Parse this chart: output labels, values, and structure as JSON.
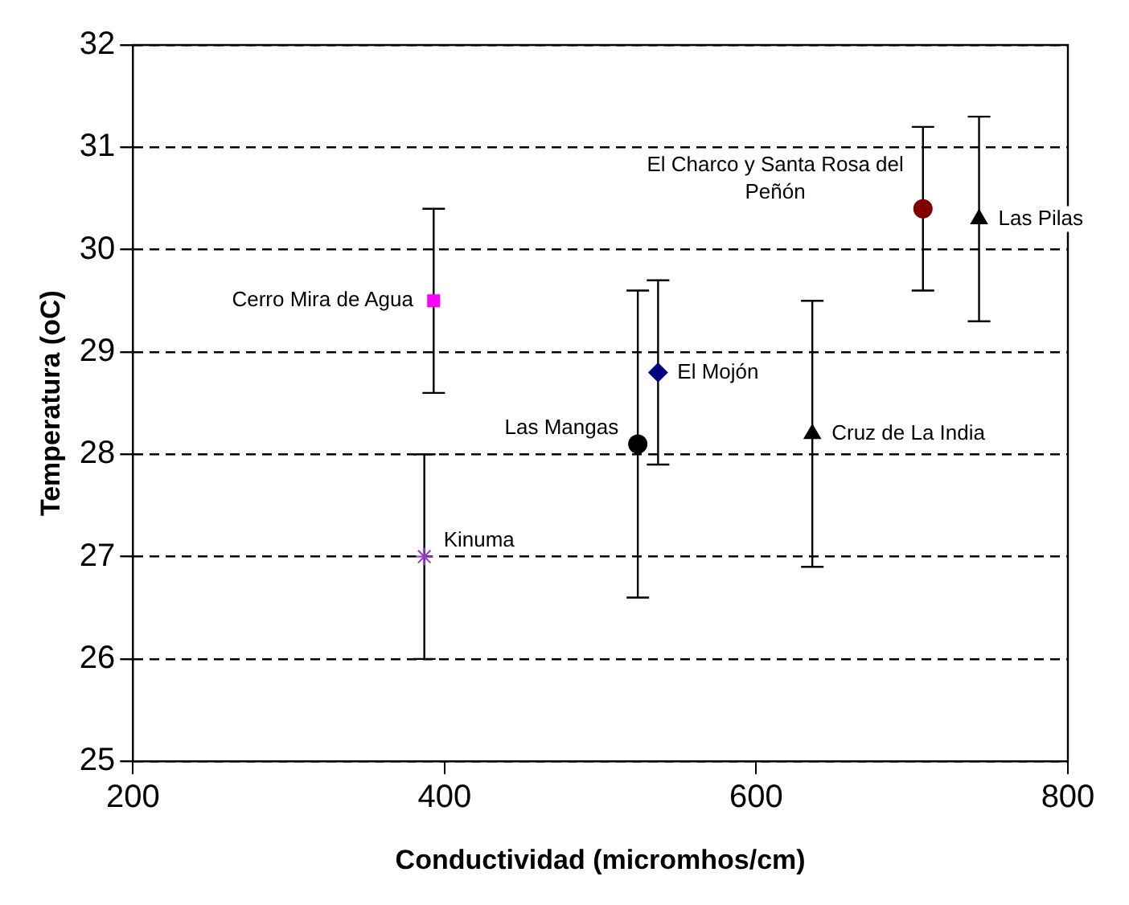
{
  "chart_data": {
    "type": "scatter",
    "xlabel": "Conductividad (micromhos/cm)",
    "ylabel": "Temperatura (oC)",
    "xlim": [
      200,
      800
    ],
    "xticks": [
      200,
      400,
      600,
      800
    ],
    "ylim": [
      25,
      32
    ],
    "yticks": [
      25,
      26,
      27,
      28,
      29,
      30,
      31,
      32
    ],
    "grid": "y",
    "series": [
      {
        "name": "Kinuma",
        "color": "#9933cc",
        "marker": "cross",
        "x": [
          387
        ],
        "values": [
          27
        ],
        "errors": [
          1
        ]
      },
      {
        "name": "Cerro Mira de Agua",
        "color": "#ff00ff",
        "marker": "square",
        "x": [
          393
        ],
        "values": [
          29.5
        ],
        "errors": [
          0.9
        ]
      },
      {
        "name": "Las Mangas",
        "color": "#000000",
        "marker": "circle",
        "x": [
          524
        ],
        "values": [
          28.1
        ],
        "errors": [
          1.5
        ]
      },
      {
        "name": "El Mojón",
        "color": "#000080",
        "marker": "diamond",
        "x": [
          537
        ],
        "values": [
          28.8
        ],
        "errors": [
          0.9
        ]
      },
      {
        "name": "Cruz de La India",
        "color": "#000000",
        "marker": "triangle",
        "x": [
          636
        ],
        "values": [
          28.2
        ],
        "errors": [
          1.3
        ]
      },
      {
        "name": "El Charco y Santa Rosa del Peñón",
        "color": "#800000",
        "marker": "circle",
        "x": [
          707
        ],
        "values": [
          30.4
        ],
        "errors": [
          0.8
        ]
      },
      {
        "name": "Las Pilas",
        "color": "#000000",
        "marker": "triangle",
        "x": [
          743
        ],
        "values": [
          30.3
        ],
        "errors": [
          1
        ]
      }
    ]
  }
}
